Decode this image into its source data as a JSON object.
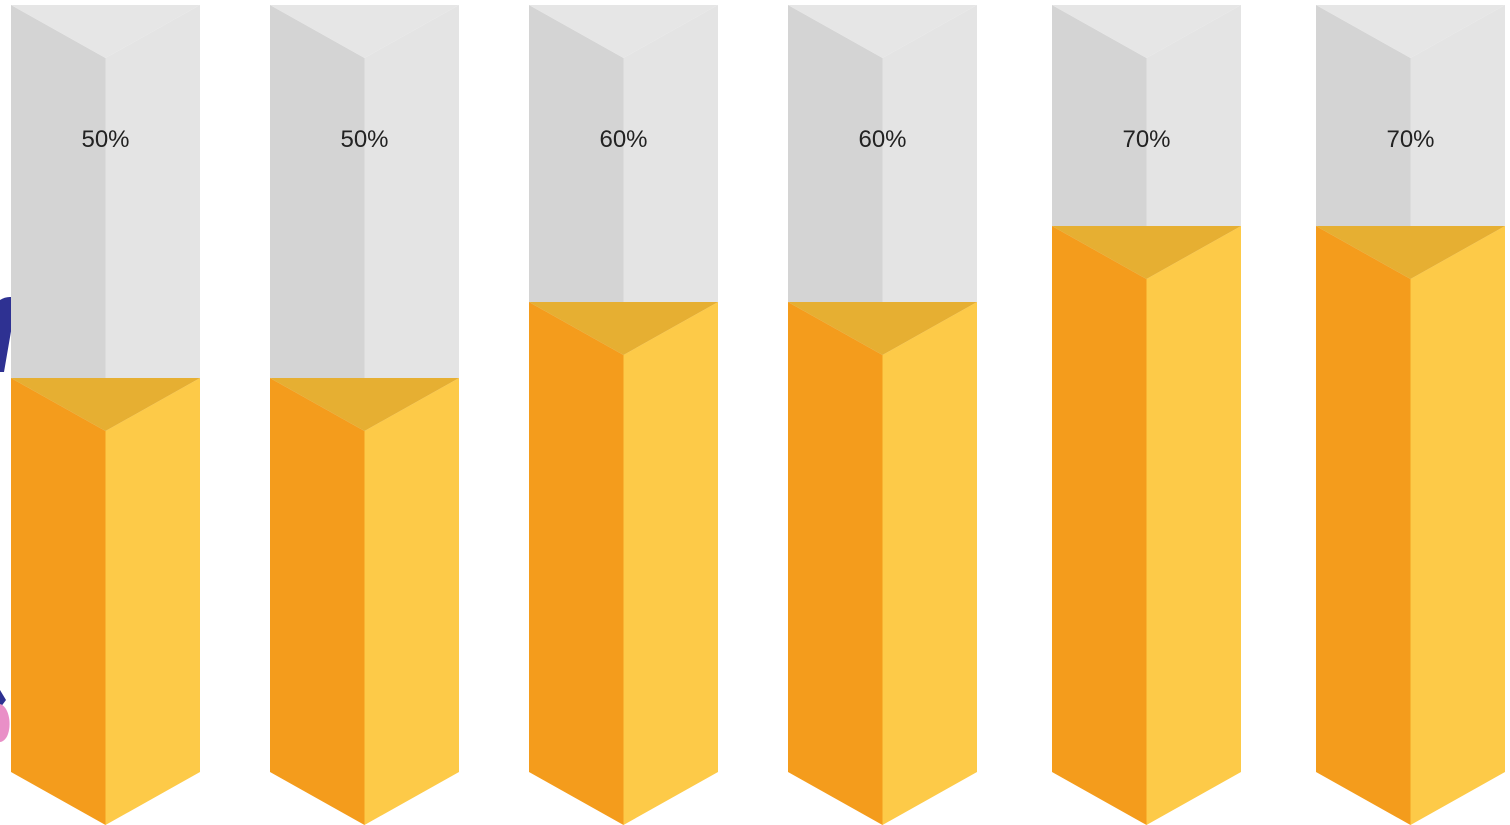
{
  "chart_data": {
    "type": "bar",
    "style": "3d-prism-fill-gauge",
    "categories": [
      "",
      "",
      "",
      "",
      "",
      ""
    ],
    "values": [
      50,
      50,
      60,
      60,
      70,
      70
    ],
    "labels": [
      "50%",
      "50%",
      "60%",
      "60%",
      "70%",
      "70%"
    ],
    "ylim": [
      0,
      100
    ],
    "unit": "%",
    "title": "",
    "xlabel": "",
    "ylabel": "",
    "grid": false,
    "legend": "none"
  },
  "colors": {
    "fill_left": "#F49C1C",
    "fill_right": "#FDCA48",
    "fill_top": "#E6AF32",
    "empty_left": "#D4D4D4",
    "empty_right": "#E4E4E4",
    "decor_navy": "#2E3192",
    "decor_pink": "#E98FC7"
  },
  "decoration": {
    "partial_figure": "illustrated person partially visible at left edge (navy and pink shapes)"
  }
}
